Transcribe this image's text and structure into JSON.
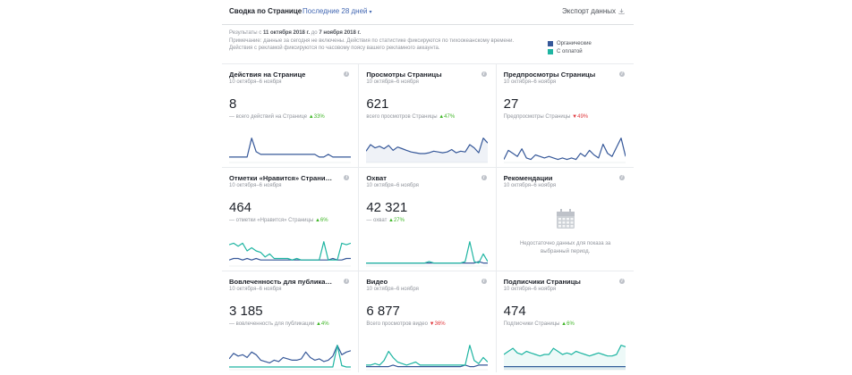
{
  "header": {
    "title": "Сводка по Странице",
    "period": "Последние 28 дней",
    "export": "Экспорт данных"
  },
  "info": {
    "results_prefix": "Результаты с",
    "date_from": "11 октября 2018 г.",
    "results_mid": "до",
    "date_to": "7 ноября 2018 г.",
    "note1": "Примечание: данные за сегодня не включены. Действия по статистике фиксируются по тихоокеанскому времени.",
    "note2": "Действия с рекламой фиксируются по часовому поясу вашего рекламного аккаунта."
  },
  "legend": [
    {
      "label": "Органические",
      "color": "#365899"
    },
    {
      "label": "С оплатой",
      "color": "#1fb5a2"
    }
  ],
  "colors": {
    "organic": "#365899",
    "paid": "#1fb5a2",
    "up": "#42b72a",
    "down": "#e0393e",
    "link": "#4267b2"
  },
  "cards": [
    {
      "title": "Действия на Странице",
      "date": "10 октября–6 ноября",
      "value": "8",
      "sub": "— всего действий на Странице",
      "change": "33%",
      "trend": "up",
      "chart_data": {
        "type": "line",
        "series": [
          {
            "values": [
              2,
              2,
              2,
              2,
              2,
              9,
              4,
              3,
              3,
              3,
              3,
              3,
              3,
              3,
              3,
              3,
              3,
              3,
              3,
              3,
              2,
              2,
              3,
              2,
              2,
              2,
              2,
              2
            ],
            "color": "#365899"
          }
        ]
      }
    },
    {
      "title": "Просмотры Страницы",
      "date": "10 октября–6 ноября",
      "value": "621",
      "sub": "всего просмотров Страницы",
      "change": "47%",
      "trend": "up",
      "chart_data": {
        "type": "area",
        "series": [
          {
            "values": [
              14,
              22,
              18,
              20,
              17,
              21,
              15,
              19,
              17,
              15,
              13,
              12,
              11,
              11,
              12,
              14,
              13,
              12,
              13,
              16,
              12,
              14,
              13,
              22,
              18,
              12,
              30,
              24
            ],
            "color": "#365899"
          }
        ]
      }
    },
    {
      "title": "Предпросмотры Страницы",
      "date": "10 октября–6 ноября",
      "value": "27",
      "sub": "Предпросмотры Страницы",
      "change": "49%",
      "trend": "down",
      "chart_data": {
        "type": "line",
        "series": [
          {
            "values": [
              2,
              8,
              6,
              4,
              9,
              3,
              2,
              5,
              4,
              3,
              4,
              3,
              2,
              3,
              2,
              3,
              2,
              6,
              4,
              8,
              5,
              3,
              12,
              6,
              4,
              10,
              16,
              4
            ],
            "color": "#365899"
          }
        ]
      }
    },
    {
      "title": "Отметки «Нравится» Страницы",
      "date": "10 октября–6 ноября",
      "value": "464",
      "sub": "— отметки «Нравится» Страницы",
      "change": "6%",
      "trend": "up",
      "chart_data": {
        "type": "line",
        "series": [
          {
            "values": [
              4,
              5,
              5,
              4,
              5,
              4,
              5,
              4,
              4,
              4,
              4,
              4,
              4,
              4,
              4,
              4,
              4,
              4,
              4,
              4,
              4,
              4,
              4,
              5,
              4,
              4,
              5,
              5
            ],
            "color": "#365899"
          },
          {
            "values": [
              14,
              15,
              13,
              15,
              10,
              12,
              10,
              9,
              6,
              8,
              5,
              5,
              5,
              5,
              4,
              5,
              4,
              4,
              4,
              4,
              4,
              16,
              4,
              4,
              4,
              15,
              14,
              15
            ],
            "color": "#1fb5a2"
          }
        ]
      }
    },
    {
      "title": "Охват",
      "date": "10 октября–6 ноября",
      "value": "42 321",
      "sub": "— охват",
      "change": "27%",
      "trend": "up",
      "chart_data": {
        "type": "line",
        "series": [
          {
            "values": [
              2,
              2,
              2,
              2,
              2,
              2,
              2,
              2,
              2,
              2,
              2,
              2,
              2,
              2,
              2,
              2,
              2,
              2,
              2,
              2,
              2,
              2,
              2,
              2,
              2,
              3,
              2,
              2
            ],
            "color": "#365899"
          },
          {
            "values": [
              2,
              2,
              2,
              2,
              2,
              2,
              2,
              2,
              2,
              2,
              2,
              2,
              2,
              2,
              3,
              2,
              2,
              2,
              2,
              2,
              2,
              2,
              3,
              16,
              3,
              2,
              8,
              3
            ],
            "color": "#1fb5a2"
          }
        ]
      }
    },
    {
      "title": "Рекомендации",
      "date": "10 октября–6 ноября",
      "empty_text": "Недостаточно данных для показа за выбранный период."
    },
    {
      "title": "Вовлеченность для публикаций",
      "date": "10 октября–6 ноября",
      "value": "3 185",
      "sub": "— вовлеченность для публикации",
      "change": "4%",
      "trend": "up",
      "chart_data": {
        "type": "line",
        "series": [
          {
            "values": [
              8,
              12,
              10,
              11,
              9,
              13,
              11,
              7,
              6,
              5,
              7,
              6,
              9,
              8,
              7,
              7,
              8,
              13,
              9,
              7,
              8,
              6,
              7,
              10,
              18,
              11,
              13,
              14
            ],
            "color": "#365899"
          },
          {
            "values": [
              2,
              2,
              2,
              2,
              2,
              2,
              2,
              2,
              2,
              2,
              2,
              2,
              2,
              2,
              2,
              2,
              2,
              2,
              2,
              2,
              2,
              2,
              2,
              2,
              18,
              3,
              2,
              2
            ],
            "color": "#1fb5a2"
          }
        ]
      }
    },
    {
      "title": "Видео",
      "date": "10 октября–6 ноября",
      "value": "6 877",
      "sub": "Всего просмотров видео",
      "change": "36%",
      "trend": "down",
      "chart_data": {
        "type": "line",
        "series": [
          {
            "values": [
              2,
              2,
              2,
              2,
              2,
              2,
              3,
              2,
              2,
              2,
              2,
              2,
              2,
              2,
              2,
              2,
              2,
              2,
              2,
              2,
              2,
              2,
              3,
              2,
              2,
              3,
              3,
              3
            ],
            "color": "#365899"
          },
          {
            "values": [
              3,
              3,
              4,
              3,
              6,
              12,
              8,
              5,
              4,
              3,
              4,
              5,
              3,
              3,
              3,
              3,
              3,
              3,
              3,
              3,
              3,
              3,
              3,
              16,
              6,
              4,
              8,
              5
            ],
            "color": "#1fb5a2"
          }
        ]
      }
    },
    {
      "title": "Подписчики Страницы",
      "date": "10 октября–6 ноября",
      "value": "474",
      "sub": "Подписчики Страницы",
      "change": "6%",
      "trend": "up",
      "chart_data": {
        "type": "area",
        "series": [
          {
            "values": [
              2,
              2,
              2,
              2,
              2,
              2,
              2,
              2,
              2,
              2,
              2,
              2,
              2,
              2,
              2,
              2,
              2,
              2,
              2,
              2,
              2,
              2,
              2,
              2,
              2,
              2,
              2,
              2
            ],
            "color": "#365899"
          },
          {
            "values": [
              10,
              12,
              14,
              11,
              10,
              12,
              11,
              10,
              9,
              10,
              10,
              14,
              12,
              10,
              11,
              10,
              12,
              11,
              10,
              9,
              10,
              11,
              10,
              9,
              9,
              10,
              16,
              15
            ],
            "color": "#1fb5a2"
          }
        ]
      }
    }
  ]
}
